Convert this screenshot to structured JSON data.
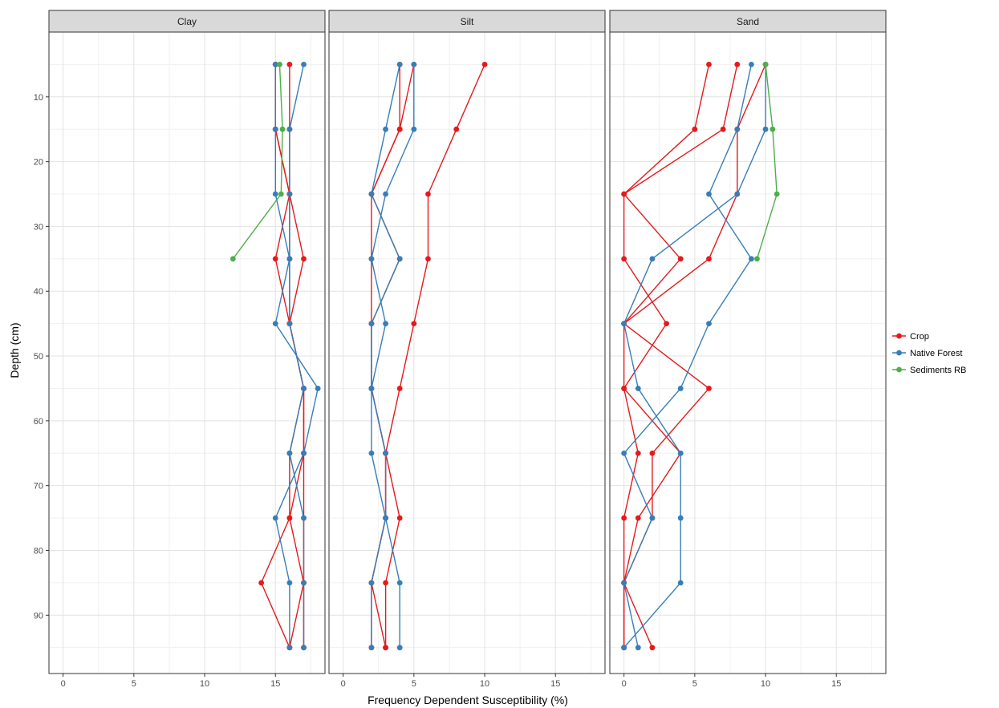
{
  "chart_data": {
    "type": "line",
    "xlabel": "Frequency Dependent Susceptibility (%)",
    "ylabel": "Depth (cm)",
    "xlim": [
      -1,
      18.5
    ],
    "ylim": [
      0,
      99
    ],
    "y_reversed": true,
    "x_ticks": [
      0,
      5,
      10,
      15
    ],
    "y_ticks": [
      10,
      20,
      30,
      40,
      50,
      60,
      70,
      80,
      90
    ],
    "grid": true,
    "legend_position": "right",
    "legend": [
      {
        "name": "Crop",
        "color": "#e41a1c"
      },
      {
        "name": "Native Forest",
        "color": "#377eb8"
      },
      {
        "name": "Sediments RB",
        "color": "#4daf4a"
      }
    ],
    "facets": [
      {
        "title": "Clay",
        "series": [
          {
            "group": "Crop",
            "color": "#e41a1c",
            "points": [
              [
                16,
                5
              ],
              [
                16,
                15
              ],
              [
                16,
                25
              ],
              [
                17,
                35
              ],
              [
                16,
                45
              ],
              [
                17,
                55
              ],
              [
                17,
                65
              ],
              [
                17,
                75
              ],
              [
                17,
                85
              ],
              [
                17,
                95
              ]
            ]
          },
          {
            "group": "Crop",
            "color": "#e41a1c",
            "points": [
              [
                15,
                5
              ],
              [
                15,
                15
              ],
              [
                16,
                25
              ],
              [
                15,
                35
              ],
              [
                16,
                45
              ],
              [
                17,
                55
              ],
              [
                16,
                65
              ],
              [
                16,
                75
              ],
              [
                14,
                85
              ],
              [
                16,
                95
              ]
            ]
          },
          {
            "group": "Crop",
            "color": "#e41a1c",
            "points": [
              [
                15,
                5
              ],
              [
                15,
                15
              ],
              [
                16,
                25
              ],
              [
                16,
                35
              ],
              [
                16,
                45
              ],
              [
                17,
                55
              ],
              [
                17,
                65
              ],
              [
                16,
                75
              ],
              [
                17,
                85
              ],
              [
                16,
                95
              ]
            ]
          },
          {
            "group": "Native Forest",
            "color": "#377eb8",
            "points": [
              [
                17,
                5
              ],
              [
                16,
                15
              ],
              [
                16,
                25
              ],
              [
                16,
                35
              ],
              [
                16,
                45
              ],
              [
                17,
                55
              ],
              [
                16,
                65
              ],
              [
                17,
                75
              ],
              [
                17,
                85
              ],
              [
                17,
                95
              ]
            ]
          },
          {
            "group": "Native Forest",
            "color": "#377eb8",
            "points": [
              [
                15,
                5
              ],
              [
                15,
                15
              ],
              [
                15,
                25
              ],
              [
                16,
                35
              ],
              [
                15,
                45
              ],
              [
                18,
                55
              ],
              [
                17,
                65
              ],
              [
                15,
                75
              ],
              [
                16,
                85
              ],
              [
                16,
                95
              ]
            ]
          },
          {
            "group": "Sediments RB",
            "color": "#4daf4a",
            "points": [
              [
                15.3,
                5
              ],
              [
                15.5,
                15
              ],
              [
                15.4,
                25
              ],
              [
                12,
                35
              ]
            ]
          }
        ]
      },
      {
        "title": "Silt",
        "series": [
          {
            "group": "Crop",
            "color": "#e41a1c",
            "points": [
              [
                10,
                5
              ],
              [
                8,
                15
              ],
              [
                6,
                25
              ],
              [
                6,
                35
              ],
              [
                5,
                45
              ],
              [
                4,
                55
              ],
              [
                3,
                65
              ],
              [
                4,
                75
              ],
              [
                3,
                85
              ],
              [
                3,
                95
              ]
            ]
          },
          {
            "group": "Crop",
            "color": "#e41a1c",
            "points": [
              [
                5,
                5
              ],
              [
                4,
                15
              ],
              [
                2,
                25
              ],
              [
                4,
                35
              ],
              [
                2,
                45
              ],
              [
                2,
                55
              ],
              [
                3,
                65
              ],
              [
                3,
                75
              ],
              [
                2,
                85
              ],
              [
                2,
                95
              ]
            ]
          },
          {
            "group": "Crop",
            "color": "#e41a1c",
            "points": [
              [
                4,
                5
              ],
              [
                4,
                15
              ],
              [
                2,
                25
              ],
              [
                2,
                35
              ],
              [
                2,
                45
              ],
              [
                2,
                55
              ],
              [
                3,
                65
              ],
              [
                3,
                75
              ],
              [
                2,
                85
              ],
              [
                3,
                95
              ]
            ]
          },
          {
            "group": "Native Forest",
            "color": "#377eb8",
            "points": [
              [
                5,
                5
              ],
              [
                5,
                15
              ],
              [
                3,
                25
              ],
              [
                2,
                35
              ],
              [
                3,
                45
              ],
              [
                2,
                55
              ],
              [
                2,
                65
              ],
              [
                3,
                75
              ],
              [
                4,
                85
              ],
              [
                4,
                95
              ]
            ]
          },
          {
            "group": "Native Forest",
            "color": "#377eb8",
            "points": [
              [
                4,
                5
              ],
              [
                3,
                15
              ],
              [
                2,
                25
              ],
              [
                4,
                35
              ],
              [
                2,
                45
              ],
              [
                2,
                55
              ],
              [
                3,
                65
              ],
              [
                3,
                75
              ],
              [
                2,
                85
              ],
              [
                2,
                95
              ]
            ]
          }
        ]
      },
      {
        "title": "Sand",
        "series": [
          {
            "group": "Crop",
            "color": "#e41a1c",
            "points": [
              [
                6,
                5
              ],
              [
                5,
                15
              ],
              [
                0,
                25
              ],
              [
                4,
                35
              ],
              [
                0,
                45
              ],
              [
                6,
                55
              ],
              [
                2,
                65
              ],
              [
                2,
                75
              ],
              [
                0,
                85
              ],
              [
                0,
                95
              ]
            ]
          },
          {
            "group": "Crop",
            "color": "#e41a1c",
            "points": [
              [
                8,
                5
              ],
              [
                7,
                15
              ],
              [
                0,
                25
              ],
              [
                0,
                35
              ],
              [
                3,
                45
              ],
              [
                0,
                55
              ],
              [
                1,
                65
              ],
              [
                0,
                75
              ],
              [
                0,
                85
              ],
              [
                2,
                95
              ]
            ]
          },
          {
            "group": "Crop",
            "color": "#e41a1c",
            "points": [
              [
                10,
                5
              ],
              [
                8,
                15
              ],
              [
                8,
                25
              ],
              [
                6,
                35
              ],
              [
                0,
                45
              ],
              [
                0,
                55
              ],
              [
                4,
                65
              ],
              [
                1,
                75
              ],
              [
                0,
                85
              ],
              [
                0,
                95
              ]
            ]
          },
          {
            "group": "Native Forest",
            "color": "#377eb8",
            "points": [
              [
                9,
                5
              ],
              [
                8,
                15
              ],
              [
                6,
                25
              ],
              [
                9,
                35
              ],
              [
                6,
                45
              ],
              [
                4,
                55
              ],
              [
                0,
                65
              ],
              [
                2,
                75
              ],
              [
                0,
                85
              ],
              [
                1,
                95
              ]
            ]
          },
          {
            "group": "Native Forest",
            "color": "#377eb8",
            "points": [
              [
                10,
                5
              ],
              [
                10,
                15
              ],
              [
                8,
                25
              ],
              [
                2,
                35
              ],
              [
                0,
                45
              ],
              [
                1,
                55
              ],
              [
                4,
                65
              ],
              [
                4,
                75
              ],
              [
                4,
                85
              ],
              [
                0,
                95
              ]
            ]
          },
          {
            "group": "Sediments RB",
            "color": "#4daf4a",
            "points": [
              [
                10,
                5
              ],
              [
                10.5,
                15
              ],
              [
                10.8,
                25
              ],
              [
                9.4,
                35
              ]
            ]
          }
        ]
      }
    ]
  }
}
